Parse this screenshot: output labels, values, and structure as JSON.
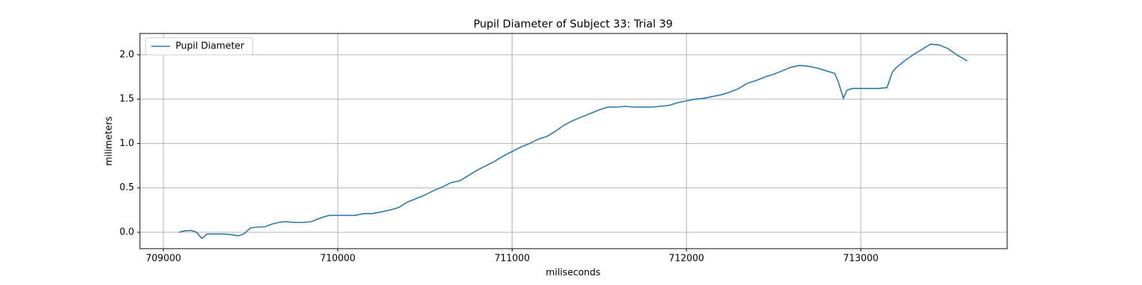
{
  "chart_data": {
    "type": "line",
    "title": "Pupil Diameter of Subject 33: Trial 39",
    "xlabel": "miliseconds",
    "ylabel": "milimeters",
    "x": [
      709090,
      709120,
      709160,
      709190,
      709220,
      709250,
      709300,
      709350,
      709400,
      709430,
      709460,
      709500,
      709550,
      709580,
      709620,
      709660,
      709700,
      709750,
      709800,
      709850,
      709900,
      709950,
      710000,
      710050,
      710100,
      710150,
      710200,
      710250,
      710300,
      710350,
      710400,
      710450,
      710500,
      710550,
      710600,
      710650,
      710700,
      710750,
      710800,
      710850,
      710900,
      710950,
      711000,
      711050,
      711100,
      711150,
      711200,
      711250,
      711300,
      711350,
      711400,
      711450,
      711500,
      711550,
      711600,
      711650,
      711700,
      711750,
      711800,
      711850,
      711900,
      711950,
      712000,
      712050,
      712100,
      712150,
      712200,
      712250,
      712300,
      712350,
      712400,
      712450,
      712500,
      712550,
      712600,
      712650,
      712700,
      712750,
      712800,
      712850,
      712870,
      712900,
      712920,
      712950,
      713000,
      713100,
      713150,
      713180,
      713200,
      713250,
      713300,
      713350,
      713400,
      713450,
      713500,
      713550,
      713610
    ],
    "series": [
      {
        "name": "Pupil Diameter",
        "color": "#1f77b4",
        "values": [
          0.0,
          0.015,
          0.02,
          0.0,
          -0.07,
          -0.02,
          -0.02,
          -0.02,
          -0.03,
          -0.04,
          -0.02,
          0.05,
          0.06,
          0.06,
          0.09,
          0.11,
          0.12,
          0.11,
          0.11,
          0.12,
          0.16,
          0.19,
          0.19,
          0.19,
          0.19,
          0.21,
          0.21,
          0.23,
          0.25,
          0.28,
          0.34,
          0.38,
          0.42,
          0.47,
          0.51,
          0.56,
          0.58,
          0.64,
          0.7,
          0.75,
          0.8,
          0.86,
          0.91,
          0.96,
          1.0,
          1.05,
          1.08,
          1.14,
          1.21,
          1.26,
          1.3,
          1.34,
          1.38,
          1.41,
          1.41,
          1.42,
          1.41,
          1.41,
          1.41,
          1.42,
          1.43,
          1.46,
          1.48,
          1.5,
          1.51,
          1.53,
          1.55,
          1.58,
          1.62,
          1.68,
          1.71,
          1.75,
          1.78,
          1.82,
          1.86,
          1.88,
          1.87,
          1.85,
          1.82,
          1.79,
          1.7,
          1.51,
          1.6,
          1.62,
          1.62,
          1.62,
          1.63,
          1.8,
          1.85,
          1.93,
          2.0,
          2.06,
          2.12,
          2.11,
          2.07,
          2.0,
          1.93
        ]
      }
    ],
    "xlim": [
      708865,
      713839
    ],
    "xticks": [
      709000,
      710000,
      711000,
      712000,
      713000
    ],
    "ylim": [
      -0.185,
      2.24
    ],
    "yticks": [
      {
        "value": 0,
        "label": "0.0"
      },
      0.5,
      {
        "value": 1,
        "label": "1.0"
      },
      1.5,
      {
        "value": 2,
        "label": "2.0"
      }
    ],
    "grid": true,
    "legend": "upper left"
  }
}
